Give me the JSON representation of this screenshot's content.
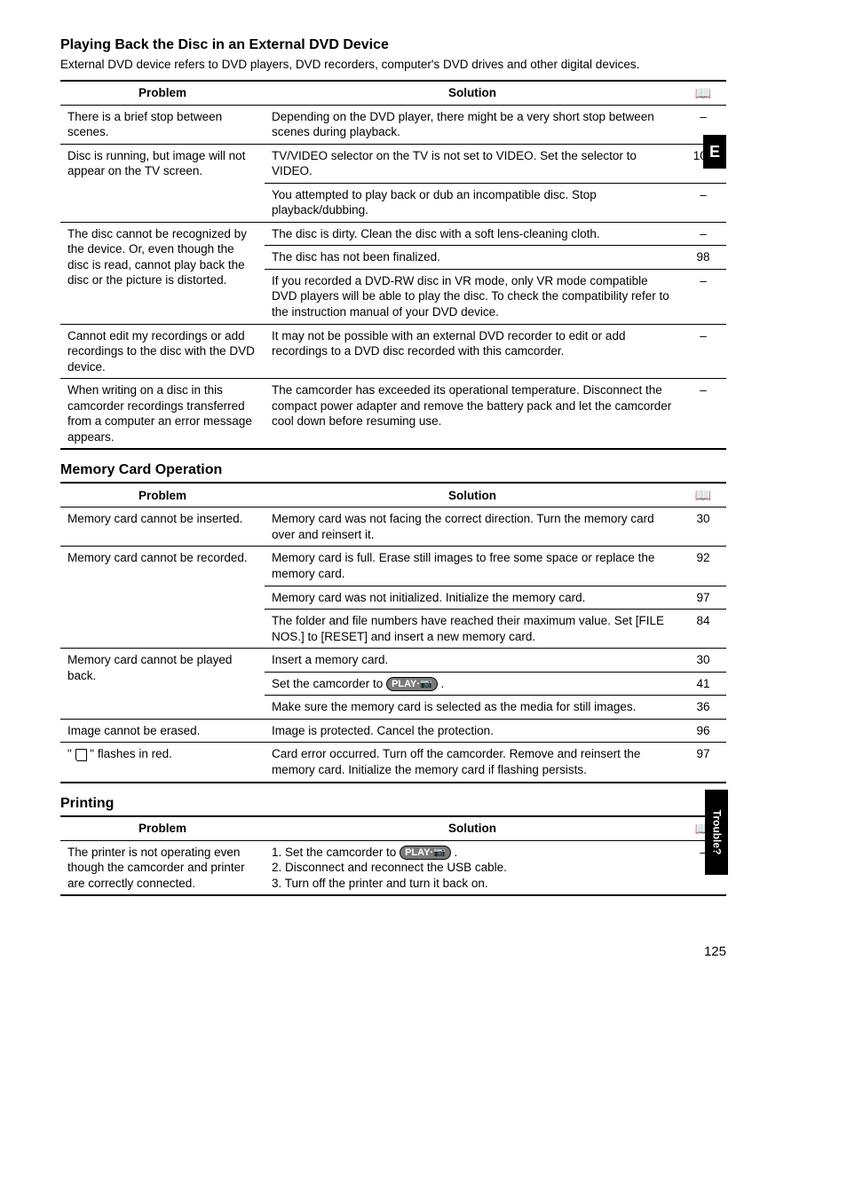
{
  "page_number": "125",
  "side_tab": "E",
  "trouble_label": "Trouble?",
  "sections": [
    {
      "title": "Playing Back the Disc in an External DVD Device",
      "intro": "External DVD device refers to DVD players, DVD recorders, computer's DVD drives and other digital devices.",
      "headers": [
        "Problem",
        "Solution",
        "📖"
      ],
      "rows": [
        {
          "problem": "There is a brief stop between scenes.",
          "solution": "Depending on the DVD player, there might be a very short stop between scenes during playback.",
          "page": "–",
          "prowspan": 1
        },
        {
          "problem": "Disc is running, but image will not appear on the TV screen.",
          "solution": "TV/VIDEO selector on the TV is not set to VIDEO. Set the selector to VIDEO.",
          "page": "102",
          "prowspan": 2
        },
        {
          "problem": "",
          "solution": "You attempted to play back or dub an incompatible disc. Stop playback/dubbing.",
          "page": "–"
        },
        {
          "problem": "The disc cannot be recognized by the device. Or, even though the disc is read, cannot play back the disc or the picture is distorted.",
          "solution": "The disc is dirty. Clean the disc with a soft lens-cleaning cloth.",
          "page": "–",
          "prowspan": 3
        },
        {
          "problem": "",
          "solution": "The disc has not been finalized.",
          "page": "98"
        },
        {
          "problem": "",
          "solution": "If you recorded a DVD-RW disc in VR mode, only VR mode compatible DVD players will be able to play the disc. To check the compatibility refer to the instruction manual of your DVD device.",
          "page": "–"
        },
        {
          "problem": "Cannot edit my recordings or add recordings to the disc with the DVD device.",
          "solution": "It may not be possible with an external DVD recorder to edit or add recordings to a DVD disc recorded with this camcorder.",
          "page": "–",
          "prowspan": 1
        },
        {
          "problem": "When writing on a disc in this camcorder recordings transferred from a computer an error message appears.",
          "solution": "The camcorder has exceeded its operational temperature. Disconnect the compact power adapter and remove the battery pack and let the camcorder cool down before resuming use.",
          "page": "–",
          "prowspan": 1,
          "last": true
        }
      ]
    },
    {
      "title": "Memory Card Operation",
      "headers": [
        "Problem",
        "Solution",
        "📖"
      ],
      "rows": [
        {
          "problem": "Memory card cannot be inserted.",
          "solution": "Memory card was not facing the correct direction. Turn the memory card over and reinsert it.",
          "page": "30",
          "prowspan": 1
        },
        {
          "problem": "Memory card cannot be recorded.",
          "solution": "Memory card is full. Erase still images to free some space or replace the memory card.",
          "page": "92",
          "prowspan": 3
        },
        {
          "problem": "",
          "solution": "Memory card was not initialized. Initialize the memory card.",
          "page": "97"
        },
        {
          "problem": "",
          "solution": "The folder and file numbers have reached their maximum value. Set [FILE NOS.] to [RESET] and insert a new memory card.",
          "page": "84"
        },
        {
          "problem": "Memory card cannot be played back.",
          "solution": "Insert a memory card.",
          "page": "30",
          "prowspan": 3
        },
        {
          "problem": "",
          "solution_html": "Set the camcorder to <span class='playbtn'>PLAY·📷</span> .",
          "page": "41"
        },
        {
          "problem": "",
          "solution": "Make sure the memory card is selected as the media for still images.",
          "page": "36"
        },
        {
          "problem": "Image cannot be erased.",
          "solution": "Image is protected. Cancel the protection.",
          "page": "96",
          "prowspan": 1
        },
        {
          "problem_html": "\" <span class='cardicon'></span> \" flashes in red.",
          "solution": "Card error occurred. Turn off the camcorder. Remove and reinsert the memory card. Initialize the memory card if flashing persists.",
          "page": "97",
          "prowspan": 1,
          "last": true
        }
      ]
    },
    {
      "title": "Printing",
      "headers": [
        "Problem",
        "Solution",
        "📖"
      ],
      "rows": [
        {
          "problem": "The printer is not operating even though the camcorder and printer are correctly connected.",
          "solution_html": "1. Set the camcorder to <span class='playbtn'>PLAY·📷</span> .<br>2. Disconnect and reconnect the USB cable.<br>3. Turn off the printer and turn it back on.",
          "page": "–",
          "prowspan": 1,
          "last": true
        }
      ]
    }
  ]
}
